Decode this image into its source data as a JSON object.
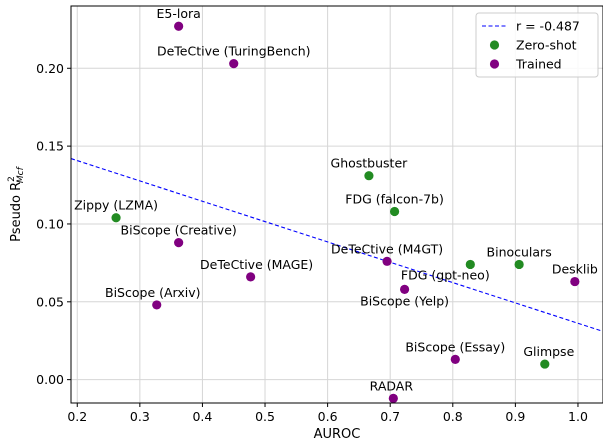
{
  "chart_data": {
    "type": "scatter",
    "xlabel": "AUROC",
    "ylabel_main": "Pseudo R",
    "ylabel_sup": "2",
    "ylabel_sub": "Mcf",
    "xlim": [
      0.19,
      1.04
    ],
    "ylim": [
      -0.015,
      0.24
    ],
    "grid": true,
    "x_ticks": [
      0.2,
      0.3,
      0.4,
      0.5,
      0.6,
      0.7,
      0.8,
      0.9,
      1.0
    ],
    "x_tick_labels": [
      "0.2",
      "0.3",
      "0.4",
      "0.5",
      "0.6",
      "0.7",
      "0.8",
      "0.9",
      "1.0"
    ],
    "y_ticks": [
      0.0,
      0.05,
      0.1,
      0.15,
      0.2
    ],
    "y_tick_labels": [
      "0.00",
      "0.05",
      "0.10",
      "0.15",
      "0.20"
    ],
    "legend_position": "top-right",
    "fit_line": {
      "name": "r = -0.487",
      "color": "#0000ff",
      "x": [
        0.19,
        1.04
      ],
      "y": [
        0.142,
        0.031
      ]
    },
    "series": [
      {
        "name": "Zero-shot",
        "color": "#228b22",
        "points": [
          {
            "label": "Zippy (LZMA)",
            "x": 0.262,
            "y": 0.104,
            "anchor": "middle",
            "dx": 0,
            "dy": -8
          },
          {
            "label": "Ghostbuster",
            "x": 0.666,
            "y": 0.131,
            "anchor": "middle",
            "dx": 0,
            "dy": -8
          },
          {
            "label": "FDG (falcon-7b)",
            "x": 0.707,
            "y": 0.108,
            "anchor": "middle",
            "dx": 0,
            "dy": -8
          },
          {
            "label": "FDG (gpt-neo)",
            "x": 0.828,
            "y": 0.074,
            "anchor": "middle",
            "dx": -25,
            "dy": 15
          },
          {
            "label": "Binoculars",
            "x": 0.906,
            "y": 0.074,
            "anchor": "middle",
            "dx": 0,
            "dy": -8
          },
          {
            "label": "Glimpse",
            "x": 0.947,
            "y": 0.01,
            "anchor": "middle",
            "dx": 4,
            "dy": -8
          }
        ]
      },
      {
        "name": "Trained",
        "color": "#800080",
        "points": [
          {
            "label": "E5-lora",
            "x": 0.362,
            "y": 0.227,
            "anchor": "middle",
            "dx": 0,
            "dy": -8
          },
          {
            "label": "DeTeCtive (TuringBench)",
            "x": 0.45,
            "y": 0.203,
            "anchor": "middle",
            "dx": 0,
            "dy": -8
          },
          {
            "label": "BiScope (Creative)",
            "x": 0.362,
            "y": 0.088,
            "anchor": "middle",
            "dx": 0,
            "dy": -8
          },
          {
            "label": "DeTeCtive (MAGE)",
            "x": 0.477,
            "y": 0.066,
            "anchor": "middle",
            "dx": 6,
            "dy": -8
          },
          {
            "label": "BiScope (Arxiv)",
            "x": 0.327,
            "y": 0.048,
            "anchor": "middle",
            "dx": -4,
            "dy": -8
          },
          {
            "label": "DeTeCtive (M4GT)",
            "x": 0.695,
            "y": 0.076,
            "anchor": "middle",
            "dx": 0,
            "dy": -8
          },
          {
            "label": "BiScope (Yelp)",
            "x": 0.723,
            "y": 0.058,
            "anchor": "middle",
            "dx": 0,
            "dy": 16
          },
          {
            "label": "BiScope (Essay)",
            "x": 0.804,
            "y": 0.013,
            "anchor": "middle",
            "dx": 0,
            "dy": -8
          },
          {
            "label": "RADAR",
            "x": 0.705,
            "y": -0.012,
            "anchor": "middle",
            "dx": -2,
            "dy": -8
          },
          {
            "label": "Desklib",
            "x": 0.995,
            "y": 0.063,
            "anchor": "middle",
            "dx": 0,
            "dy": -8
          }
        ]
      }
    ]
  }
}
